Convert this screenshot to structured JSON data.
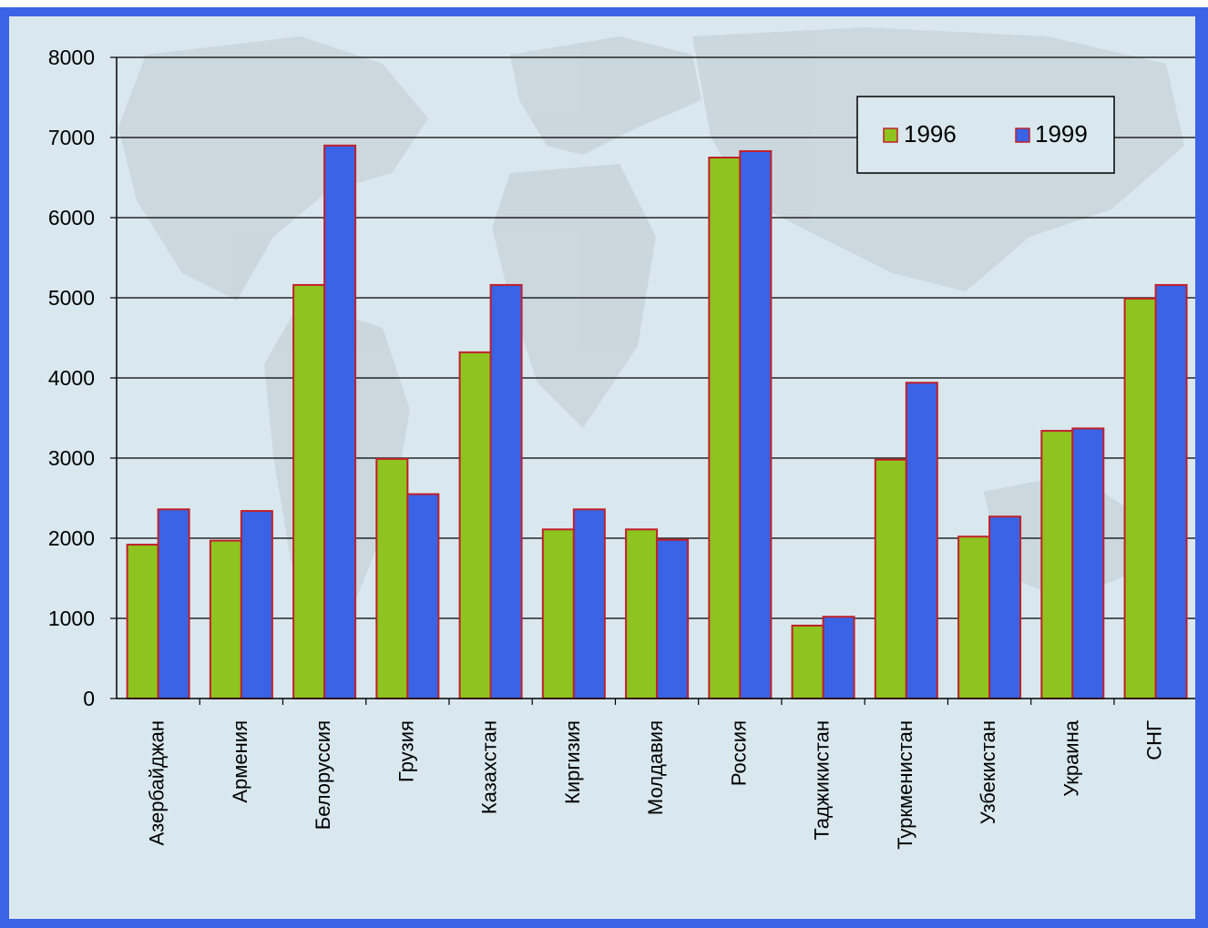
{
  "chart_data": {
    "type": "bar",
    "title": "",
    "xlabel": "",
    "ylabel": "",
    "ylim": [
      0,
      8000
    ],
    "yticks": [
      0,
      1000,
      2000,
      3000,
      4000,
      5000,
      6000,
      7000,
      8000
    ],
    "grid": true,
    "legend_position": "top-right",
    "categories": [
      "Азербайджан",
      "Армения",
      "Белоруссия",
      "Грузия",
      "Казахстан",
      "Киргизия",
      "Молдавия",
      "Россия",
      "Таджикистан",
      "Туркменистан",
      "Узбекистан",
      "Украина",
      "СНГ"
    ],
    "series": [
      {
        "name": "1996",
        "color": "#8fc31f",
        "values": [
          1920,
          1970,
          5160,
          2990,
          4320,
          2110,
          2110,
          6750,
          910,
          2980,
          2020,
          3340,
          4990
        ]
      },
      {
        "name": "1999",
        "color": "#3a63e6",
        "values": [
          2360,
          2340,
          6900,
          2550,
          5160,
          2360,
          1980,
          6830,
          1020,
          3940,
          2270,
          3370,
          5160
        ]
      }
    ]
  },
  "colors": {
    "frame": "#3a63e6",
    "background": "#d9e8ee",
    "bar_outline": "#c0202a"
  }
}
